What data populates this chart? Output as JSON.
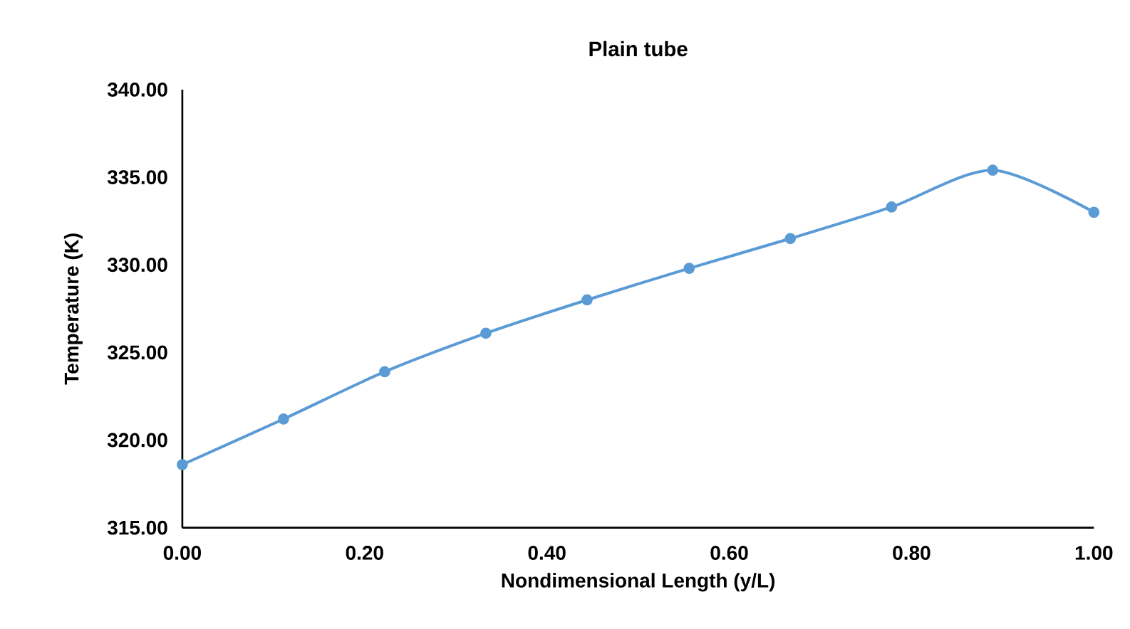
{
  "chart_data": {
    "type": "line",
    "title": "Plain tube",
    "xlabel": "Nondimensional Length (y/L)",
    "ylabel": "Temperature (K)",
    "x": [
      0,
      0.111,
      0.222,
      0.333,
      0.444,
      0.556,
      0.667,
      0.778,
      0.889,
      1.0
    ],
    "series": [
      {
        "color": "#5b9bd5",
        "values": [
          318.6,
          321.2,
          323.9,
          326.1,
          328.0,
          329.8,
          331.5,
          333.3,
          335.4,
          333.0
        ]
      }
    ],
    "xlim": [
      0,
      1
    ],
    "ylim": [
      315,
      340
    ],
    "xticks": [
      {
        "value": 0,
        "label": "0.00"
      },
      {
        "value": 0.2,
        "label": "0.20"
      },
      {
        "value": 0.4,
        "label": "0.40"
      },
      {
        "value": 0.6,
        "label": "0.60"
      },
      {
        "value": 0.8,
        "label": "0.80"
      },
      {
        "value": 1.0,
        "label": "1.00"
      }
    ],
    "yticks": [
      {
        "value": 315,
        "label": "315.00"
      },
      {
        "value": 320,
        "label": "320.00"
      },
      {
        "value": 325,
        "label": "325.00"
      },
      {
        "value": 330,
        "label": "330.00"
      },
      {
        "value": 335,
        "label": "335.00"
      },
      {
        "value": 340,
        "label": "340.00"
      }
    ],
    "grid": false,
    "legend": false,
    "marker": "circle",
    "line_style": "solid"
  }
}
